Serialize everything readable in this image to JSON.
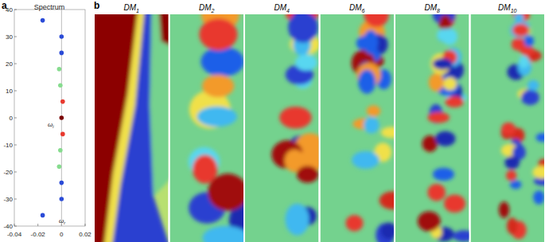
{
  "chart_data": [
    {
      "type": "scatter",
      "label": "a",
      "title": "Spectrum",
      "xlabel": "ωr",
      "ylabel": "ωi",
      "x": [
        -0.016,
        0,
        0,
        -0.002,
        -0.001,
        0.001,
        0,
        0.001,
        -0.001,
        -0.002,
        0,
        0,
        -0.016
      ],
      "series": [
        {
          "values": [
            36,
            30,
            24,
            18,
            12,
            6,
            0,
            -6,
            -12,
            -18,
            -24,
            -30,
            -36
          ]
        }
      ],
      "colors": [
        "#2a4bd7",
        "#2a4bd7",
        "#2a4bd7",
        "#86dc8e",
        "#86dc8e",
        "#e8392e",
        "#7a0000",
        "#e8392e",
        "#86dc8e",
        "#86dc8e",
        "#2a4bd7",
        "#2a4bd7",
        "#2a4bd7"
      ],
      "xlim": [
        -0.04,
        0.02
      ],
      "xticks": [
        -0.04,
        -0.02,
        0,
        0.02
      ],
      "ylim": [
        -40,
        40
      ],
      "yticks": [
        -40,
        -30,
        -20,
        -10,
        0,
        10,
        20,
        30,
        40
      ]
    },
    {
      "type": "mode_images",
      "label": "b",
      "titles": [
        "DM1",
        "DM2",
        "DM4",
        "DM6",
        "DM8",
        "DM10"
      ]
    }
  ]
}
